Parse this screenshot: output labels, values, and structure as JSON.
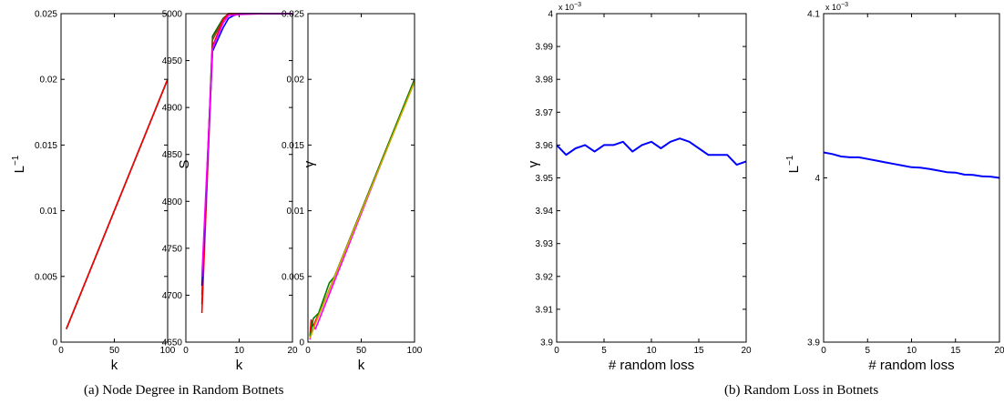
{
  "captions": {
    "a": "(a)  Node Degree in Random Botnets",
    "b": "(b)  Random Loss in Botnets"
  },
  "chart_data": [
    {
      "type": "line",
      "xlabel": "k",
      "ylabel": "L",
      "ylabel_sup": "−1",
      "xlim": [
        0,
        100
      ],
      "ylim": [
        0,
        0.025
      ],
      "xticks": [
        0,
        50,
        100
      ],
      "yticks": [
        0,
        0.005,
        0.01,
        0.015,
        0.02,
        0.025
      ],
      "series": [
        {
          "color": "#0000ff",
          "x": [
            5,
            100
          ],
          "y": [
            0.001,
            0.02
          ]
        },
        {
          "color": "#008000",
          "x": [
            5,
            100
          ],
          "y": [
            0.001,
            0.02
          ]
        },
        {
          "color": "#ff0000",
          "x": [
            5,
            100
          ],
          "y": [
            0.001,
            0.02
          ]
        }
      ]
    },
    {
      "type": "line",
      "xlabel": "k",
      "ylabel": "S",
      "xlim": [
        0,
        20
      ],
      "ylim": [
        4650,
        5000
      ],
      "xticks": [
        0,
        10,
        20
      ],
      "yticks": [
        4650,
        4700,
        4750,
        4800,
        4850,
        4900,
        4950,
        5000
      ],
      "series": [
        {
          "color": "#006400",
          "x": [
            3,
            5,
            7,
            8,
            10,
            15,
            20
          ],
          "y": [
            4690,
            4976,
            4995,
            5000,
            5000,
            5000,
            5000
          ]
        },
        {
          "color": "#8b4513",
          "x": [
            3,
            5,
            7,
            8,
            10,
            15,
            20
          ],
          "y": [
            4700,
            4972,
            4994,
            5000,
            5000,
            5000,
            5000
          ]
        },
        {
          "color": "#ff0000",
          "x": [
            3,
            5,
            7,
            8,
            10,
            15,
            20
          ],
          "y": [
            4681,
            4965,
            4993,
            5000,
            5000,
            5000,
            5000
          ]
        },
        {
          "color": "#0000ff",
          "x": [
            3,
            5,
            7,
            8,
            9,
            10,
            15,
            20
          ],
          "y": [
            4710,
            4960,
            4985,
            4995,
            4998,
            5000,
            5000,
            5000
          ]
        },
        {
          "color": "#ff00ff",
          "x": [
            3,
            5,
            7,
            8,
            10,
            15,
            20
          ],
          "y": [
            4720,
            4963,
            4990,
            4998,
            4999,
            5000,
            5000
          ]
        }
      ]
    },
    {
      "type": "line",
      "xlabel": "k",
      "ylabel": "γ",
      "xlim": [
        0,
        100
      ],
      "ylim": [
        0,
        0.025
      ],
      "xticks": [
        0,
        50,
        100
      ],
      "yticks": [
        0,
        0.005,
        0.01,
        0.015,
        0.02,
        0.025
      ],
      "series": [
        {
          "color": "#ff00ff",
          "x": [
            2,
            4,
            7,
            10,
            100
          ],
          "y": [
            0.0002,
            0.0014,
            0.001,
            0.0016,
            0.02
          ]
        },
        {
          "color": "#ff0000",
          "x": [
            2,
            3,
            5,
            8,
            12,
            100
          ],
          "y": [
            0.0005,
            0.0017,
            0.0012,
            0.0018,
            0.0024,
            0.02
          ]
        },
        {
          "color": "#008000",
          "x": [
            2,
            5,
            10,
            20,
            25,
            100
          ],
          "y": [
            0.0004,
            0.0018,
            0.0022,
            0.0045,
            0.005,
            0.02
          ]
        },
        {
          "color": "#ccaa00",
          "x": [
            2,
            6,
            15,
            100
          ],
          "y": [
            0.0003,
            0.0012,
            0.003,
            0.0198
          ]
        }
      ]
    },
    {
      "type": "line",
      "xlabel": "# random loss",
      "ylabel": "γ",
      "scale_note": "x 10",
      "scale_exp": "−3",
      "xlim": [
        0,
        20
      ],
      "ylim": [
        3.9,
        4.0
      ],
      "xticks": [
        0,
        5,
        10,
        15,
        20
      ],
      "yticks": [
        3.9,
        3.91,
        3.92,
        3.93,
        3.94,
        3.95,
        3.96,
        3.97,
        3.98,
        3.99,
        4.0
      ],
      "ytick_labels": [
        "3.9",
        "3.91",
        "3.92",
        "3.93",
        "3.94",
        "3.95",
        "3.96",
        "3.97",
        "3.98",
        "3.99",
        "4"
      ],
      "series": [
        {
          "color": "#0000ff",
          "x": [
            0,
            1,
            2,
            3,
            4,
            5,
            6,
            7,
            8,
            9,
            10,
            11,
            12,
            13,
            14,
            15,
            16,
            17,
            18,
            19,
            20
          ],
          "y": [
            3.96,
            3.957,
            3.959,
            3.96,
            3.958,
            3.96,
            3.96,
            3.961,
            3.958,
            3.96,
            3.961,
            3.959,
            3.961,
            3.962,
            3.961,
            3.959,
            3.957,
            3.957,
            3.957,
            3.954,
            3.955
          ]
        }
      ]
    },
    {
      "type": "line",
      "xlabel": "# random loss",
      "ylabel": "L",
      "ylabel_sup": "−1",
      "scale_note": "x 10",
      "scale_exp": "−3",
      "xlim": [
        0,
        20
      ],
      "ylim": [
        3.9,
        4.1
      ],
      "xticks": [
        0,
        5,
        10,
        15,
        20
      ],
      "yticks": [
        3.9,
        4.0,
        4.1
      ],
      "ytick_labels": [
        "3.9",
        "4",
        "4.1"
      ],
      "series": [
        {
          "color": "#0000ff",
          "x": [
            0,
            1,
            2,
            3,
            4,
            5,
            6,
            7,
            8,
            9,
            10,
            11,
            12,
            13,
            14,
            15,
            16,
            17,
            18,
            19,
            20
          ],
          "y": [
            4.0155,
            4.0145,
            4.013,
            4.0125,
            4.0125,
            4.0115,
            4.0105,
            4.0095,
            4.0085,
            4.0075,
            4.0065,
            4.0062,
            4.0055,
            4.0045,
            4.0035,
            4.0032,
            4.002,
            4.0018,
            4.001,
            4.0008,
            4.0
          ]
        }
      ]
    }
  ]
}
